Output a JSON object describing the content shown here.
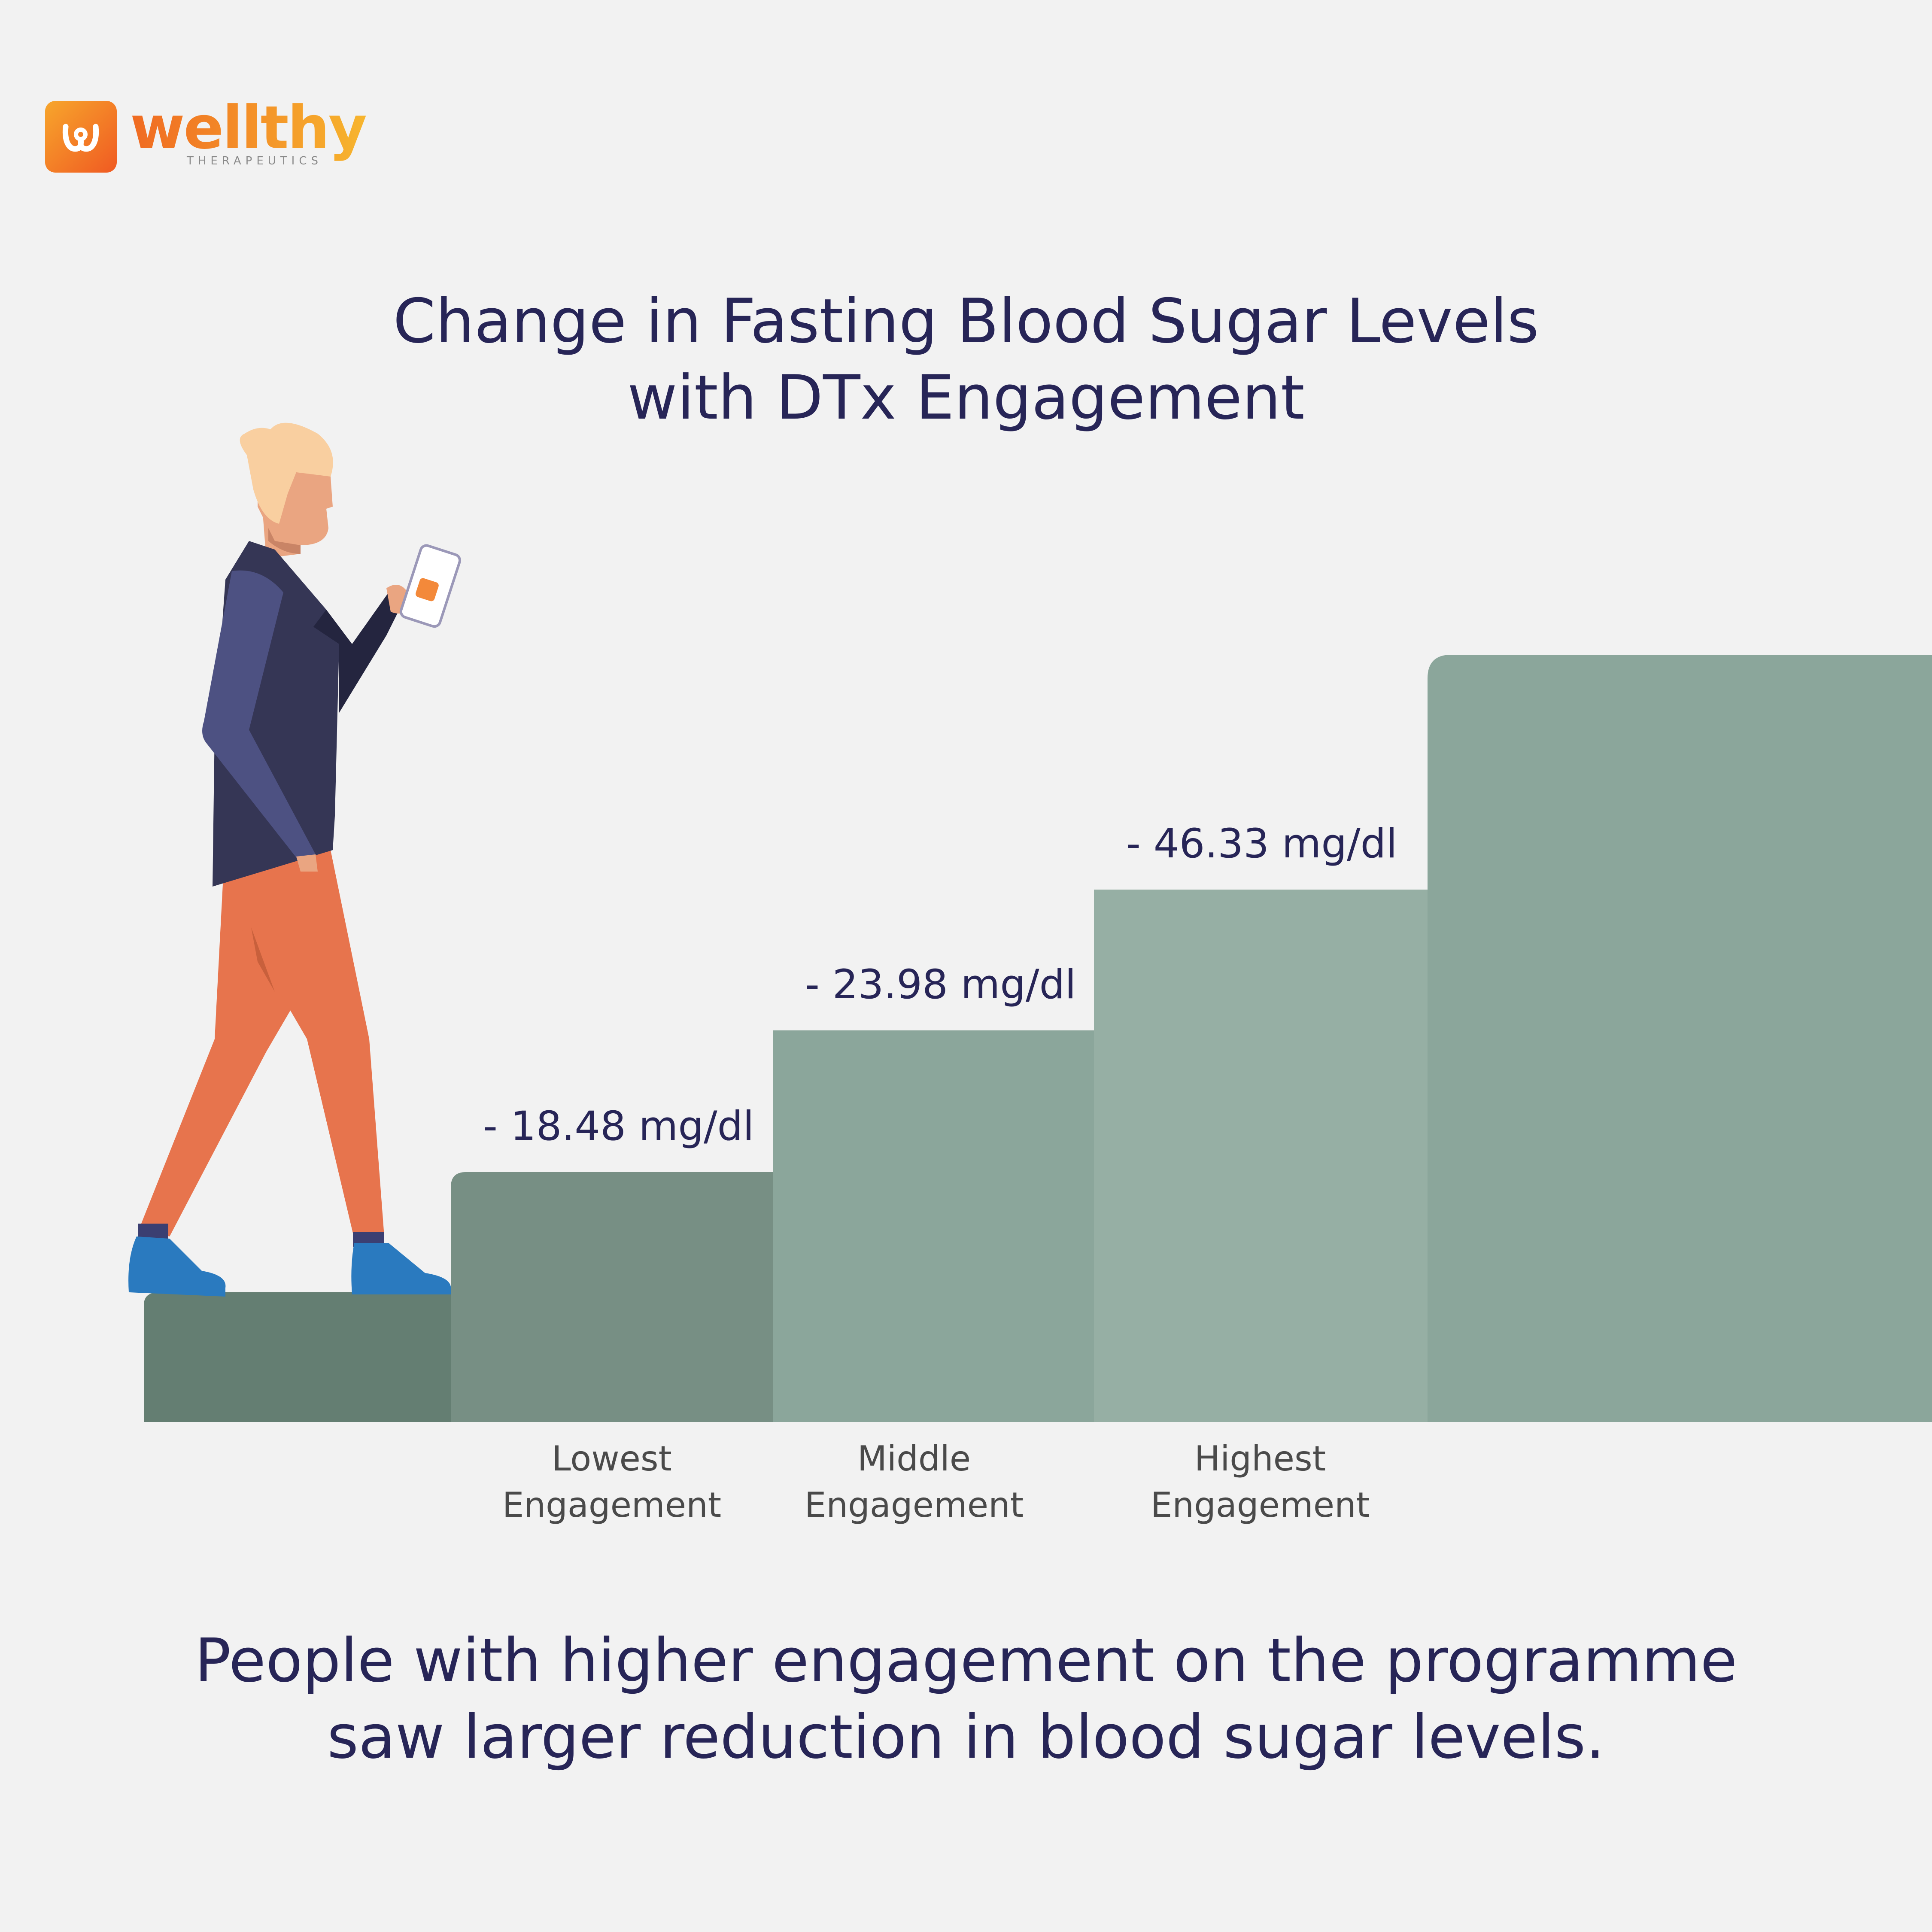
{
  "brand": {
    "name": "wellthy",
    "tagline": "THERAPEUTICS",
    "colors": {
      "orange": "#f05a22",
      "yellow": "#f7b52e"
    }
  },
  "title_line1": "Change in Fasting Blood Sugar Levels",
  "title_line2": "with DTx Engagement",
  "takeaway_line1": "People with higher engagement on the programme",
  "takeaway_line2": "saw larger reduction in blood sugar levels.",
  "chart_data": {
    "type": "bar",
    "title": "Change in Fasting Blood Sugar Levels with DTx Engagement",
    "categories": [
      [
        "Lowest",
        "Engagement"
      ],
      [
        "Middle",
        "Engagement"
      ],
      [
        "Highest",
        "Engagement"
      ]
    ],
    "values": [
      -18.48,
      -23.98,
      -46.33
    ],
    "value_labels": [
      "- 18.48 mg/dl",
      "- 23.98 mg/dl",
      "- 46.33 mg/dl"
    ],
    "unit": "mg/dl",
    "grid": false,
    "legend": "none",
    "bar_colors": [
      "#778f84",
      "#8ba69b",
      "#96afa4"
    ],
    "decoration_colors": {
      "base_step": "#647e72",
      "top_step": "#8ba69b"
    }
  },
  "illustration": {
    "subject": "person walking up steps while looking at phone",
    "colors": {
      "hair": "#f9cfa0",
      "skin": "#eaa581",
      "jacket": "#353655",
      "sleeve": "#4d5182",
      "pants": "#e7744d",
      "shoes": "#2a7abf"
    }
  }
}
